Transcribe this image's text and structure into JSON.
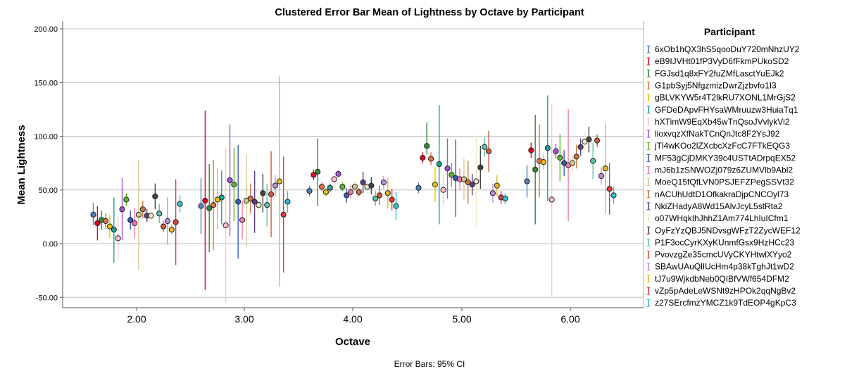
{
  "chart_data": {
    "type": "scatter",
    "title": "Clustered Error Bar Mean of Lightness by Octave by Participant",
    "xlabel": "Octave",
    "ylabel": "Mean Lightness",
    "footnote": "Error Bars: 95% CI",
    "categories": [
      "2.00",
      "3.00",
      "4.00",
      "5.00",
      "6.00"
    ],
    "y_ticks": [
      "200.00",
      "150.00",
      "100.00",
      "50.00",
      "0.00",
      "-50.00"
    ],
    "ylim": [
      -60,
      207
    ],
    "grid": "horizontal",
    "legend_title": "Participant",
    "legend_position": "right",
    "series": [
      {
        "name": "6xOb1hQX3hS5qooDuY720mNhzUY2",
        "color": "#4f81bd",
        "means": [
          27,
          35,
          49,
          52,
          58
        ],
        "lows": [
          17,
          9,
          44,
          47,
          43
        ],
        "highs": [
          38,
          61,
          54,
          57,
          73
        ]
      },
      {
        "name": "eB9IJVHt01fP3VyD6fFkmPUkoSD2",
        "color": "#e4002b",
        "means": [
          19,
          40,
          64,
          80,
          87
        ],
        "lows": [
          3,
          -43,
          59,
          75,
          80
        ],
        "highs": [
          35,
          124,
          69,
          85,
          94
        ]
      },
      {
        "name": "FGJsd1q8xFY2fuZMfLasctYuEJk2",
        "color": "#2e8b3a",
        "means": [
          22,
          33,
          67,
          91,
          69
        ],
        "lows": [
          13,
          -8,
          35,
          83,
          18
        ],
        "highs": [
          31,
          74,
          98,
          113,
          120
        ]
      },
      {
        "name": "G1pbSyj5NfgzmizDwrZjzbvfo1I3",
        "color": "#e87040",
        "means": [
          21,
          36,
          53,
          79,
          77
        ],
        "lows": [
          14,
          -6,
          49,
          73,
          43
        ],
        "highs": [
          28,
          78,
          57,
          85,
          111
        ]
      },
      {
        "name": "gBLVKYW5r4T2lkRU7XONL1MrGjS2",
        "color": "#e8c400",
        "means": [
          16,
          41,
          48,
          55,
          76
        ],
        "lows": [
          5,
          13,
          44,
          39,
          69
        ],
        "highs": [
          27,
          70,
          52,
          71,
          83
        ]
      },
      {
        "name": "GFDeDApvFHYsaWMruuzw3HuiaTq1",
        "color": "#1aa39a",
        "means": [
          13,
          43,
          52,
          74,
          89
        ],
        "lows": [
          -18,
          18,
          48,
          18,
          40
        ],
        "highs": [
          43,
          68,
          56,
          129,
          138
        ]
      },
      {
        "name": "hXTimW9EqXb45wTnQsoJVvlykVi2",
        "color": "#ffc0cb",
        "means": [
          5,
          17,
          60,
          50,
          41
        ],
        "lows": [
          -15,
          -55,
          55,
          36,
          -48
        ],
        "highs": [
          25,
          89,
          65,
          64,
          130
        ]
      },
      {
        "name": "lioxvqzXfNakTCnQnJtc8F2YsJ92",
        "color": "#a64fd6",
        "means": [
          32,
          59,
          65,
          70,
          86
        ],
        "lows": [
          3,
          7,
          62,
          42,
          79
        ],
        "highs": [
          61,
          111,
          68,
          98,
          93
        ]
      },
      {
        "name": "jTl4wKOo2lZXcbcXzFcC7FTkEQG3",
        "color": "#5cb82a",
        "means": [
          41,
          55,
          53,
          64,
          80
        ],
        "lows": [
          35,
          21,
          49,
          53,
          58
        ],
        "highs": [
          47,
          89,
          57,
          75,
          102
        ]
      },
      {
        "name": "MF53gCjDMKY39c4USTtADrpqEX52",
        "color": "#3b5ab8",
        "means": [
          22,
          39,
          45,
          61,
          75
        ],
        "lows": [
          13,
          -14,
          38,
          25,
          63
        ],
        "highs": [
          31,
          92,
          52,
          97,
          87
        ]
      },
      {
        "name": "mJ6b1zSNWOZj079z6ZUMVlb9Abl2",
        "color": "#f07aa8",
        "means": [
          19,
          22,
          48,
          60,
          73
        ],
        "lows": [
          5,
          4,
          42,
          50,
          21
        ],
        "highs": [
          33,
          40,
          54,
          70,
          125
        ]
      },
      {
        "name": "MoeQ15fQfLVN0PSJEFZPegSSVt32",
        "color": "#d8c890",
        "means": [
          27,
          40,
          53,
          60,
          75
        ],
        "lows": [
          -24,
          -3,
          49,
          41,
          68
        ],
        "highs": [
          78,
          83,
          57,
          79,
          82
        ]
      },
      {
        "name": "nACUhUdtD1OfkakraDjpCNCOyl73",
        "color": "#c8783c",
        "means": [
          32,
          42,
          48,
          57,
          81
        ],
        "lows": [
          24,
          28,
          44,
          37,
          70
        ],
        "highs": [
          40,
          56,
          52,
          77,
          92
        ]
      },
      {
        "name": "NkiZHadyA8Wd15AlvJcyL5stRta2",
        "color": "#5e3d8a",
        "means": [
          26,
          39,
          57,
          55,
          90
        ],
        "lows": [
          20,
          10,
          47,
          45,
          82
        ],
        "highs": [
          32,
          68,
          67,
          65,
          98
        ]
      },
      {
        "name": "o07WHqkIhJhhZ1Am774LhIuICfm1",
        "color": "#f5ebc8",
        "means": [
          26,
          36,
          53,
          58,
          95
        ],
        "lows": [
          20,
          28,
          47,
          15,
          86
        ],
        "highs": [
          32,
          44,
          59,
          101,
          104
        ]
      },
      {
        "name": "OyFzYzQBJ5NDvsgWFzT2ZycWEF12",
        "color": "#444444",
        "means": [
          44,
          47,
          54,
          71,
          97
        ],
        "lows": [
          32,
          29,
          46,
          51,
          85
        ],
        "highs": [
          56,
          65,
          62,
          91,
          109
        ]
      },
      {
        "name": "P1F3ocCyrKXyKUnmfGsx9HzHCc23",
        "color": "#5fc4a6",
        "means": [
          28,
          36,
          42,
          90,
          77
        ],
        "lows": [
          19,
          16,
          35,
          81,
          60
        ],
        "highs": [
          37,
          56,
          49,
          99,
          94
        ]
      },
      {
        "name": "PvovzgZe35cmcUVyCKYHtwlXYyo2",
        "color": "#d05a3a",
        "means": [
          16,
          46,
          45,
          86,
          96
        ],
        "lows": [
          11,
          6,
          36,
          67,
          90
        ],
        "highs": [
          21,
          86,
          54,
          105,
          102
        ]
      },
      {
        "name": "SBAwUAuQlIUcHm4p38kTghJt1wD2",
        "color": "#c08ae0",
        "means": [
          21,
          54,
          57,
          47,
          63
        ],
        "lows": [
          -1,
          44,
          51,
          38,
          55
        ],
        "highs": [
          43,
          64,
          63,
          56,
          71
        ]
      },
      {
        "name": "tJ7u9WjkdbNeb0QIBfVWf654DFM2",
        "color": "#e8b820",
        "means": [
          13,
          58,
          47,
          54,
          70
        ],
        "lows": [
          8,
          -40,
          33,
          44,
          28
        ],
        "highs": [
          18,
          156,
          61,
          64,
          112
        ]
      },
      {
        "name": "vZp5pAdeLeWSNt9zHPOk2qqNgBv2",
        "color": "#e03c3c",
        "means": [
          20,
          27,
          41,
          43,
          51
        ],
        "lows": [
          -20,
          -27,
          31,
          37,
          27
        ],
        "highs": [
          60,
          81,
          51,
          49,
          75
        ]
      },
      {
        "name": "z27SErcfmzYMCZ1k9TdEOP4gKpC3",
        "color": "#2ec0cc",
        "means": [
          37,
          39,
          35,
          42,
          45
        ],
        "lows": [
          29,
          29,
          22,
          37,
          37
        ],
        "highs": [
          45,
          49,
          48,
          47,
          53
        ]
      }
    ]
  }
}
